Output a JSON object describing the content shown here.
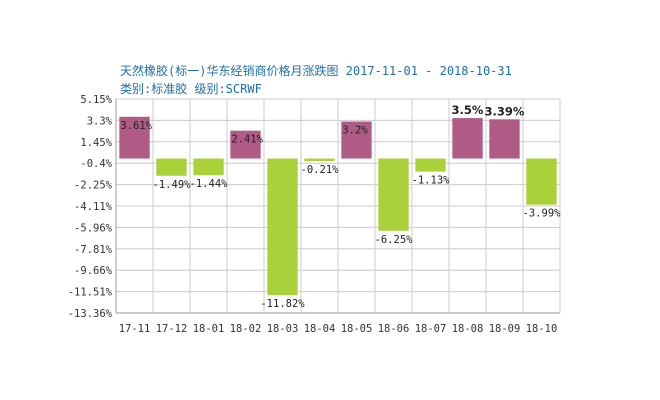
{
  "title": "天然橡胶(标一)华东经销商价格月涨跌图 2017-11-01 - 2018-10-31",
  "subtitle": "类别:标准胶 级别:SCRWF",
  "colors": {
    "positive": "#b05a86",
    "negative": "#a8d13a",
    "grid": "#cccccc",
    "axis": "#999999",
    "title": "#1f6fb0"
  },
  "chart_data": {
    "type": "bar",
    "categories": [
      "17-11",
      "17-12",
      "18-01",
      "18-02",
      "18-03",
      "18-04",
      "18-05",
      "18-06",
      "18-07",
      "18-08",
      "18-09",
      "18-10"
    ],
    "values": [
      3.61,
      -1.49,
      -1.44,
      2.41,
      -11.82,
      -0.21,
      3.2,
      -6.25,
      -1.13,
      3.5,
      3.39,
      -3.99
    ],
    "data_labels": [
      "3.61%",
      "-1.49%",
      "-1.44%",
      "2.41%",
      "-11.82%",
      "-0.21%",
      "3.2%",
      "-6.25%",
      "-1.13%",
      "3.5%",
      "3.39%",
      "-3.99%"
    ],
    "bold_labels": [
      false,
      false,
      false,
      false,
      false,
      false,
      false,
      false,
      false,
      true,
      true,
      false
    ],
    "y_ticks": [
      "5.15%",
      "3.3%",
      "1.45%",
      "-0.4%",
      "-2.25%",
      "-4.11%",
      "-5.96%",
      "-7.81%",
      "-9.66%",
      "-11.51%",
      "-13.36%"
    ],
    "ylim": [
      -13.36,
      5.15
    ],
    "grid": true
  }
}
